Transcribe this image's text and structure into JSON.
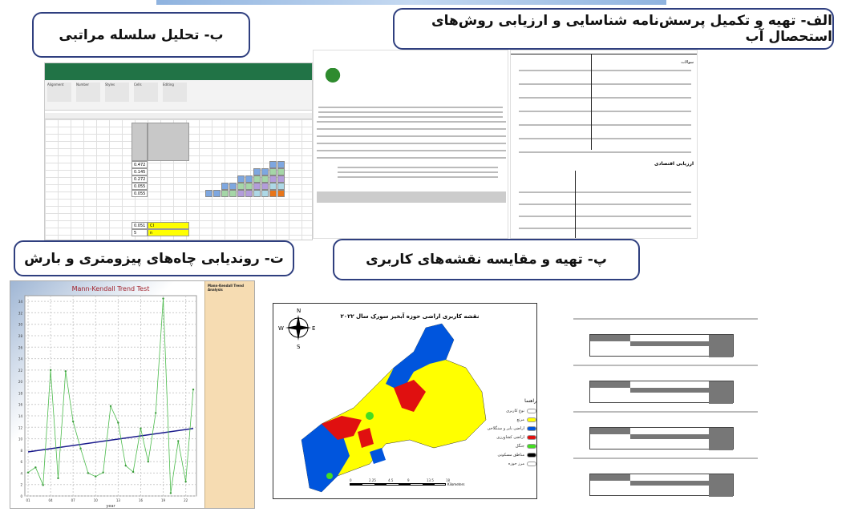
{
  "labels": {
    "a": "الف- تهیه و تکمیل پرسش‌نامه شناسایی و ارزیابی روش‌های استحصال آب",
    "b": "ب- تحلیل سلسله مراتبی",
    "p": "پ- تهیه و مقایسه نقشه‌های کاربری",
    "t": "ت- روندیابی چاه‌های پیزومتری و بارش"
  },
  "colors": {
    "box_border": "#2f3f7f",
    "excel_green": "#217346",
    "chart_side": "#f6dcb2",
    "trend": "#1a1a8c",
    "series": "#4cbb4c"
  },
  "excel": {
    "ribbon_groups": [
      "Alignment",
      "Number",
      "Styles",
      "Cells",
      "Editing"
    ],
    "weights": [
      "0.472",
      "0.145",
      "0.272",
      "0.055",
      "0.055"
    ],
    "ci": "0.051",
    "n": "5",
    "ci_label": "CI",
    "n_label": "n"
  },
  "questionnaire": {
    "table_header": "سوالات",
    "section_title": "ارزیابی اقتصادی"
  },
  "map": {
    "title": "نقشه کاربری اراضی حوزه آبخیز سورک سال ۲۰۲۲",
    "compass": {
      "n": "N",
      "s": "S",
      "e": "E",
      "w": "W"
    },
    "legend_title": "راهنما",
    "legend": [
      {
        "label": "نوع کاربری",
        "color": "#ffffff"
      },
      {
        "label": "مرتع",
        "color": "#ffff00"
      },
      {
        "label": "اراضی بایر و سنگلاخی",
        "color": "#0055dd"
      },
      {
        "label": "اراضی کشاورزی",
        "color": "#e01010"
      },
      {
        "label": "جنگل",
        "color": "#44dd22"
      },
      {
        "label": "مناطق مسکونی",
        "color": "#000000"
      },
      {
        "label": "مرز حوزه",
        "color": "#ffffff"
      }
    ],
    "scale": [
      "0",
      "2.25",
      "4.5",
      "9",
      "13.5",
      "18"
    ],
    "scale_unit": "Kilometers"
  },
  "chart_data": {
    "type": "line",
    "title": "Mann-Kendall Trend Test",
    "xlabel": "year",
    "ylabel": "",
    "ylim": [
      0,
      35
    ],
    "yticks": [
      0,
      2,
      4,
      6,
      8,
      10,
      12,
      14,
      16,
      18,
      20,
      22,
      24,
      26,
      28,
      30,
      32,
      34
    ],
    "xtick_labels": [
      "01",
      "04",
      "07",
      "10",
      "13",
      "16",
      "19",
      "22"
    ],
    "grid": true,
    "series": [
      {
        "values": [
          4.1,
          5.0,
          1.9,
          22.0,
          3.1,
          21.8,
          13.0,
          8.3,
          4.0,
          3.4,
          4.1,
          15.7,
          12.8,
          5.3,
          4.2,
          11.8,
          6.0,
          14.5,
          34.5,
          0.5,
          9.6,
          2.5,
          18.6
        ]
      }
    ],
    "trend": [
      7.7,
      11.8
    ],
    "side_title": "Mann-Kendall Trend Analysis"
  }
}
